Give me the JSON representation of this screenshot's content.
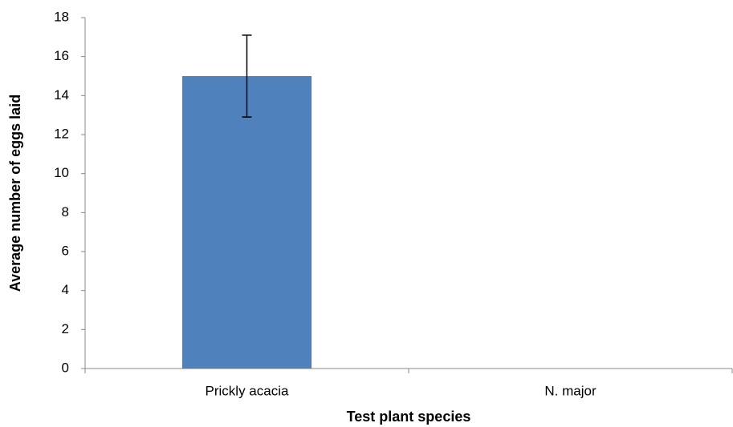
{
  "chart_data": {
    "type": "bar",
    "x_label": "Test plant species",
    "y_label": "Average number of eggs laid",
    "categories": [
      "Prickly acacia",
      "N. major"
    ],
    "values": [
      15,
      0
    ],
    "errors": [
      2.1,
      null
    ],
    "color": "#4f81bd",
    "ylim": [
      0,
      18
    ],
    "yticks": [
      0,
      2,
      4,
      6,
      8,
      10,
      12,
      14,
      16,
      18
    ],
    "grid": false
  }
}
